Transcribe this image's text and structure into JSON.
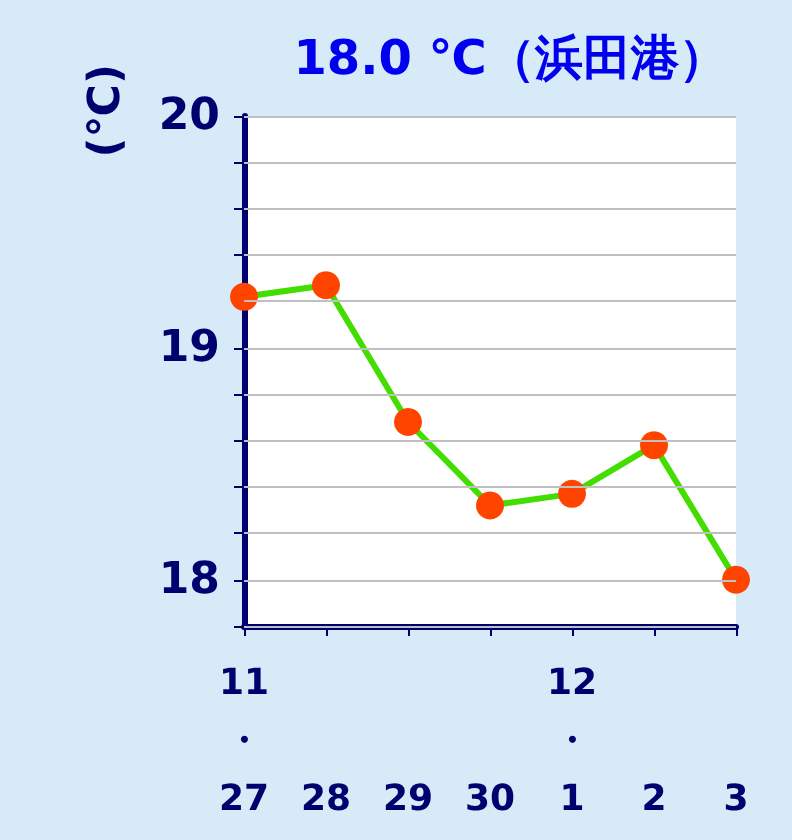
{
  "chart_data": {
    "type": "line",
    "title": "18.0 ℃（浜田港）",
    "ylabel": "(℃)",
    "categories": [
      "11\n・\n27",
      "28",
      "29",
      "30",
      "12\n・\n1",
      "2",
      "3"
    ],
    "series": [
      {
        "color": "#44dd00",
        "colors": [
          "#ff4400",
          "#ff4400",
          "#ff4400",
          "#ff4400",
          "#ff4400",
          "#ff4400",
          "#ff4400"
        ],
        "values": [
          19.22,
          19.27,
          18.68,
          18.32,
          18.37,
          18.58,
          18.0
        ]
      }
    ],
    "marker": "circle",
    "line_style": "solid",
    "ylim": [
      17.8,
      20
    ],
    "yticks": [
      {
        "value": 17.8,
        "label": null
      },
      18,
      {
        "value": 18.2,
        "label": null
      },
      {
        "value": 18.4,
        "label": null
      },
      {
        "value": 18.6,
        "label": null
      },
      {
        "value": 18.8,
        "label": null
      },
      19,
      {
        "value": 19.2,
        "label": null
      },
      {
        "value": 19.4,
        "label": null
      },
      {
        "value": 19.6,
        "label": null
      },
      {
        "value": 19.8,
        "label": null
      },
      20
    ],
    "grid": "y"
  }
}
